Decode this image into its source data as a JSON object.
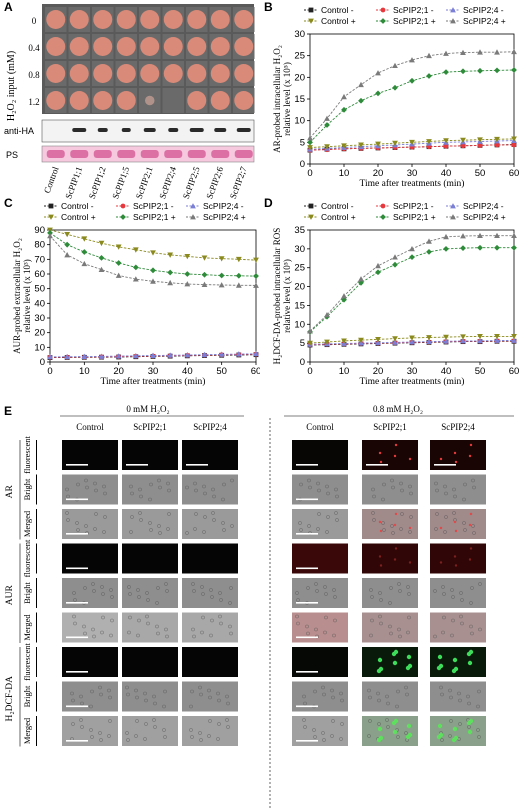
{
  "panel_letters": [
    "A",
    "B",
    "C",
    "D",
    "E"
  ],
  "panelA": {
    "ylabel": "H₂O₂ input (mM)",
    "rows": [
      "0",
      "0.4",
      "0.8",
      "1.2"
    ],
    "blot_labels": [
      "anti-HA",
      "PS"
    ],
    "strains": [
      "Control",
      "ScPIP1;1",
      "ScPIP1;2",
      "ScPIP1;5",
      "ScPIP2;1",
      "ScPIP2;4",
      "ScPIP2;5",
      "ScPIP2;6",
      "ScPIP2;7"
    ],
    "growth": [
      [
        1,
        1,
        1,
        1,
        1,
        1,
        1,
        1,
        1
      ],
      [
        1,
        1,
        1,
        1,
        1,
        1,
        1,
        1,
        1
      ],
      [
        1,
        1,
        1,
        1,
        1,
        1,
        1,
        1,
        1
      ],
      [
        1,
        1,
        1,
        1,
        0.25,
        0.05,
        1,
        1,
        1
      ]
    ]
  },
  "legend": {
    "ctrl_minus": "Control -",
    "p21_minus": "ScPIP2;1 -",
    "p24_minus": "ScPIP2;4 -",
    "ctrl_plus": "Control +",
    "p21_plus": "ScPIP2;1 +",
    "p24_plus": "ScPIP2;4 +"
  },
  "colors": {
    "ctrl_minus": "#222222",
    "p21_minus": "#e8383d",
    "p24_minus": "#7b7fd6",
    "ctrl_plus": "#8a8a1e",
    "p21_plus": "#2e8b3a",
    "p24_plus": "#7a7a7a"
  },
  "chart_data": [
    {
      "id": "B",
      "type": "line",
      "ylabel_line1": "AR-probed intracellular H₂O₂",
      "ylabel_line2": "relative level (x 10⁵)",
      "xlabel": "Time  after treatments (min)",
      "xlim": [
        0,
        60
      ],
      "ylim": [
        0,
        30
      ],
      "xticks": [
        0,
        10,
        20,
        30,
        40,
        50,
        60
      ],
      "yticks": [
        0,
        5,
        10,
        15,
        20,
        25,
        30
      ],
      "x": [
        0,
        5,
        10,
        15,
        20,
        25,
        30,
        35,
        40,
        45,
        50,
        55,
        60
      ],
      "series": [
        {
          "key": "ctrl_minus",
          "values": [
            3.2,
            3.4,
            3.5,
            3.6,
            3.7,
            3.8,
            3.9,
            4.0,
            4.1,
            4.2,
            4.3,
            4.4,
            4.5
          ]
        },
        {
          "key": "p21_minus",
          "values": [
            3.2,
            3.3,
            3.5,
            3.6,
            3.7,
            3.8,
            3.9,
            4.0,
            4.1,
            4.2,
            4.3,
            4.4,
            4.4
          ]
        },
        {
          "key": "p24_minus",
          "values": [
            3.4,
            3.6,
            3.8,
            4.0,
            4.2,
            4.4,
            4.6,
            4.8,
            5.0,
            5.1,
            5.2,
            5.3,
            5.4
          ]
        },
        {
          "key": "ctrl_plus",
          "values": [
            3.8,
            4.0,
            4.2,
            4.4,
            4.6,
            4.8,
            5.0,
            5.2,
            5.4,
            5.5,
            5.6,
            5.7,
            5.8
          ]
        },
        {
          "key": "p21_plus",
          "values": [
            5.0,
            9.0,
            12.5,
            14.6,
            16.3,
            17.6,
            19.2,
            20.3,
            21.2,
            21.4,
            21.5,
            21.6,
            21.7
          ]
        },
        {
          "key": "p24_plus",
          "values": [
            6.0,
            10.5,
            15.5,
            18.3,
            21.0,
            22.7,
            24.0,
            25.0,
            25.5,
            25.7,
            25.8,
            25.8,
            25.9
          ]
        }
      ]
    },
    {
      "id": "C",
      "type": "line",
      "ylabel_line1": "AUR-probed extracellular H₂O₂",
      "ylabel_line2": "relative level (x 10³)",
      "xlabel": "Time  after treatments (min)",
      "xlim": [
        0,
        60
      ],
      "ylim": [
        0,
        90
      ],
      "xticks": [
        0,
        10,
        20,
        30,
        40,
        50,
        60
      ],
      "yticks": [
        0,
        10,
        20,
        30,
        40,
        50,
        60,
        70,
        80,
        90
      ],
      "x": [
        0,
        5,
        10,
        15,
        20,
        25,
        30,
        35,
        40,
        45,
        50,
        55,
        60
      ],
      "series": [
        {
          "key": "ctrl_minus",
          "values": [
            3.0,
            3.1,
            3.2,
            3.3,
            3.4,
            3.6,
            3.8,
            4.0,
            4.2,
            4.4,
            4.6,
            4.8,
            5.0
          ]
        },
        {
          "key": "p21_minus",
          "values": [
            3.2,
            3.3,
            3.4,
            3.5,
            3.7,
            3.9,
            4.1,
            4.3,
            4.5,
            4.7,
            4.9,
            5.1,
            5.3
          ]
        },
        {
          "key": "p24_minus",
          "values": [
            3.5,
            3.6,
            3.7,
            3.8,
            4.0,
            4.2,
            4.4,
            4.6,
            4.8,
            5.0,
            5.2,
            5.4,
            5.6
          ]
        },
        {
          "key": "ctrl_plus",
          "values": [
            90,
            87,
            84,
            81,
            78.5,
            76.5,
            74.5,
            73,
            72,
            71,
            70.5,
            70,
            69.5
          ]
        },
        {
          "key": "p21_plus",
          "values": [
            88,
            80,
            75,
            71,
            67.5,
            64.5,
            62.5,
            61,
            60,
            59.5,
            59,
            58.8,
            58.6
          ]
        },
        {
          "key": "p24_plus",
          "values": [
            86,
            73,
            67,
            63,
            59,
            56.5,
            55,
            54,
            53.2,
            52.8,
            52.5,
            52.3,
            52.2
          ]
        }
      ]
    },
    {
      "id": "D",
      "type": "line",
      "ylabel_line1": "H₂DCF-DA-probed intracellular ROS",
      "ylabel_line2": "relative level (x 10⁵)",
      "xlabel": "Time  after treatments (min)",
      "xlim": [
        0,
        60
      ],
      "ylim": [
        0,
        35
      ],
      "xticks": [
        0,
        10,
        20,
        30,
        40,
        50,
        60
      ],
      "yticks": [
        0,
        5,
        10,
        15,
        20,
        25,
        30,
        35
      ],
      "x": [
        0,
        5,
        10,
        15,
        20,
        25,
        30,
        35,
        40,
        45,
        50,
        55,
        60
      ],
      "series": [
        {
          "key": "ctrl_minus",
          "values": [
            4.5,
            4.6,
            4.7,
            4.8,
            4.9,
            5.0,
            5.1,
            5.2,
            5.3,
            5.4,
            5.4,
            5.5,
            5.5
          ]
        },
        {
          "key": "p21_minus",
          "values": [
            4.6,
            4.7,
            4.8,
            4.9,
            5.0,
            5.1,
            5.2,
            5.3,
            5.4,
            5.5,
            5.5,
            5.6,
            5.6
          ]
        },
        {
          "key": "p24_minus",
          "values": [
            4.7,
            4.8,
            4.9,
            5.0,
            5.1,
            5.2,
            5.3,
            5.4,
            5.5,
            5.6,
            5.6,
            5.7,
            5.7
          ]
        },
        {
          "key": "ctrl_plus",
          "values": [
            5.0,
            5.3,
            5.6,
            5.8,
            6.0,
            6.2,
            6.4,
            6.5,
            6.6,
            6.7,
            6.8,
            6.8,
            6.8
          ]
        },
        {
          "key": "p21_plus",
          "values": [
            8.0,
            12.0,
            16.5,
            21.0,
            23.8,
            25.8,
            27.8,
            29.2,
            30.0,
            30.2,
            30.3,
            30.3,
            30.3
          ]
        },
        {
          "key": "p24_plus",
          "values": [
            8.2,
            12.5,
            17.5,
            22.0,
            25.5,
            27.8,
            30.0,
            32.0,
            33.2,
            33.4,
            33.5,
            33.5,
            33.5
          ]
        }
      ]
    }
  ],
  "panelE": {
    "group_left": "0 mM H₂O₂",
    "group_right": "0.8 mM H₂O₂",
    "columns": [
      "Control",
      "ScPIP2;1",
      "ScPIP2;4",
      "Control",
      "ScPIP2;1",
      "ScPIP2;4"
    ],
    "probes": [
      "AR",
      "AUR",
      "H₂DCF-DA"
    ],
    "row_types": [
      "fluorescent",
      "Bright",
      "Merged"
    ]
  }
}
